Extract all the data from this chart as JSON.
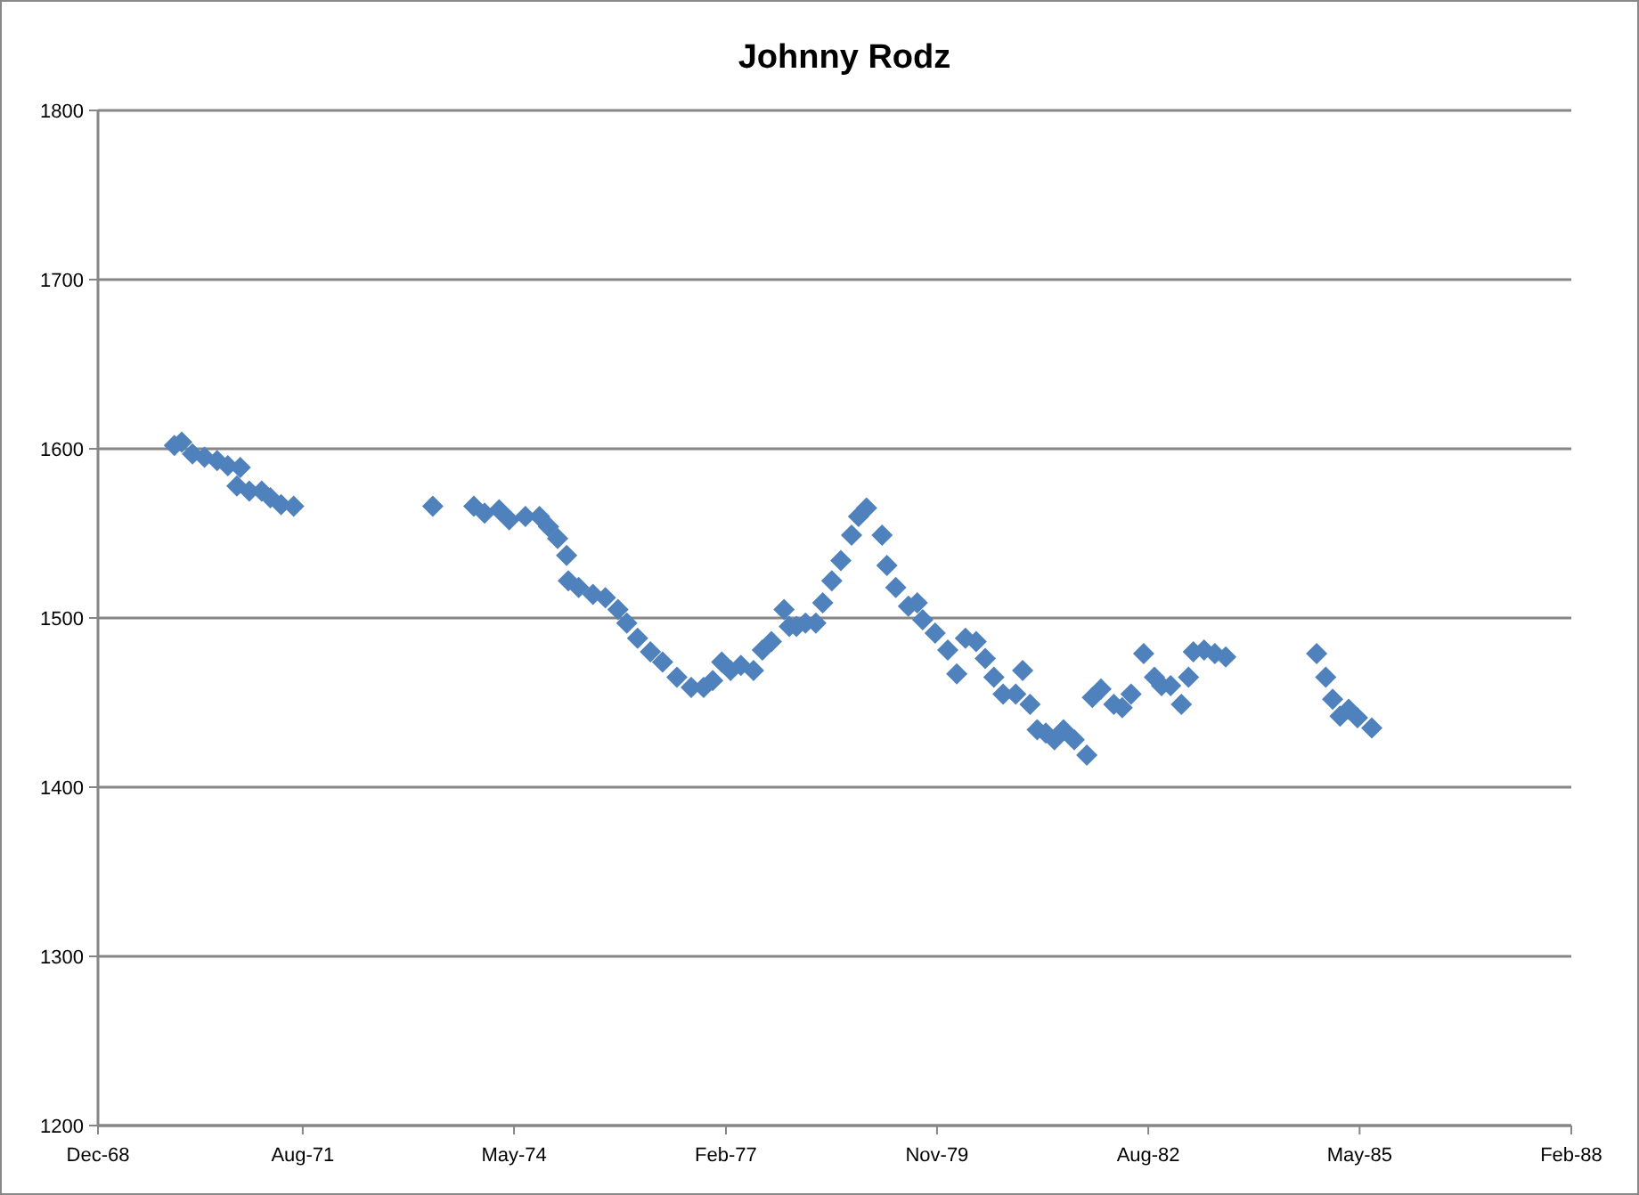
{
  "chart_data": {
    "type": "scatter",
    "title": "Johnny Rodz",
    "marker": "diamond",
    "grid": "y",
    "xlim": [
      "1968-12-01",
      "1988-02-01"
    ],
    "xticks": [
      {
        "value": "1968-12-01",
        "label": "Dec-68"
      },
      {
        "value": "1971-08-01",
        "label": "Aug-71"
      },
      {
        "value": "1974-05-01",
        "label": "May-74"
      },
      {
        "value": "1977-02-01",
        "label": "Feb-77"
      },
      {
        "value": "1979-11-01",
        "label": "Nov-79"
      },
      {
        "value": "1982-08-01",
        "label": "Aug-82"
      },
      {
        "value": "1985-05-01",
        "label": "May-85"
      },
      {
        "value": "1988-02-01",
        "label": "Feb-88"
      }
    ],
    "ylim": [
      1200,
      1800
    ],
    "yticks": [
      1200,
      1300,
      1400,
      1500,
      1600,
      1700,
      1800
    ],
    "series": [
      {
        "color": "#4f81bd",
        "x": [
          "1969-11-29",
          "1970-01-03",
          "1970-02-23",
          "1970-04-21",
          "1970-06-20",
          "1970-08-10",
          "1970-10-08",
          "1970-09-22",
          "1970-11-20",
          "1971-01-18",
          "1971-02-28",
          "1971-04-20",
          "1971-06-19",
          "1973-04-10",
          "1973-10-22",
          "1973-12-12",
          "1974-02-19",
          "1974-04-08",
          "1974-06-24",
          "1974-08-30",
          "1974-10-12",
          "1974-11-24",
          "1975-01-06",
          "1975-01-14",
          "1975-03-04",
          "1975-05-11",
          "1975-07-09",
          "1975-09-07",
          "1975-10-19",
          "1975-12-09",
          "1976-02-08",
          "1976-04-06",
          "1976-06-13",
          "1976-08-20",
          "1976-10-18",
          "1976-11-30",
          "1977-01-12",
          "1977-02-23",
          "1977-04-13",
          "1977-06-12",
          "1977-07-24",
          "1977-09-05",
          "1977-11-04",
          "1977-11-29",
          "1978-01-02",
          "1978-02-14",
          "1978-04-04",
          "1978-05-07",
          "1978-06-19",
          "1978-08-01",
          "1978-09-21",
          "1978-10-24",
          "1978-12-01",
          "1979-02-13",
          "1979-03-08",
          "1979-04-19",
          "1979-06-18",
          "1979-07-30",
          "1979-08-25",
          "1979-10-23",
          "1979-12-22",
          "1980-02-03",
          "1980-03-15",
          "1980-05-05",
          "1980-06-17",
          "1980-07-28",
          "1980-09-10",
          "1980-11-09",
          "1980-12-12",
          "1981-01-16",
          "1981-02-19",
          "1981-04-01",
          "1981-05-12",
          "1981-06-24",
          "1981-08-14",
          "1981-10-13",
          "1981-11-08",
          "1981-12-19",
          "1982-02-18",
          "1982-03-30",
          "1982-05-11",
          "1982-07-10",
          "1982-08-30",
          "1982-10-03",
          "1982-11-15",
          "1983-01-05",
          "1983-02-08",
          "1983-03-03",
          "1983-04-23",
          "1983-06-13",
          "1983-08-04",
          "1984-10-09",
          "1984-11-21",
          "1984-12-24",
          "1985-01-28",
          "1985-03-10",
          "1985-04-21",
          "1985-06-28"
        ],
        "values": [
          1602,
          1604,
          1597,
          1595,
          1593,
          1590,
          1589,
          1578,
          1575,
          1575,
          1571,
          1567,
          1566,
          1566,
          1566,
          1562,
          1564,
          1558,
          1560,
          1560,
          1554,
          1547,
          1537,
          1522,
          1518,
          1514,
          1512,
          1505,
          1497,
          1488,
          1480,
          1474,
          1465,
          1459,
          1459,
          1463,
          1474,
          1469,
          1472,
          1469,
          1481,
          1486,
          1505,
          1495,
          1495,
          1497,
          1497,
          1509,
          1522,
          1534,
          1549,
          1560,
          1565,
          1549,
          1531,
          1518,
          1507,
          1509,
          1499,
          1491,
          1481,
          1467,
          1488,
          1486,
          1476,
          1465,
          1455,
          1455,
          1469,
          1449,
          1434,
          1432,
          1428,
          1434,
          1428,
          1419,
          1453,
          1458,
          1449,
          1447,
          1455,
          1479,
          1465,
          1460,
          1460,
          1449,
          1465,
          1480,
          1481,
          1479,
          1477,
          1479,
          1465,
          1452,
          1442,
          1446,
          1441,
          1435
        ]
      }
    ]
  }
}
